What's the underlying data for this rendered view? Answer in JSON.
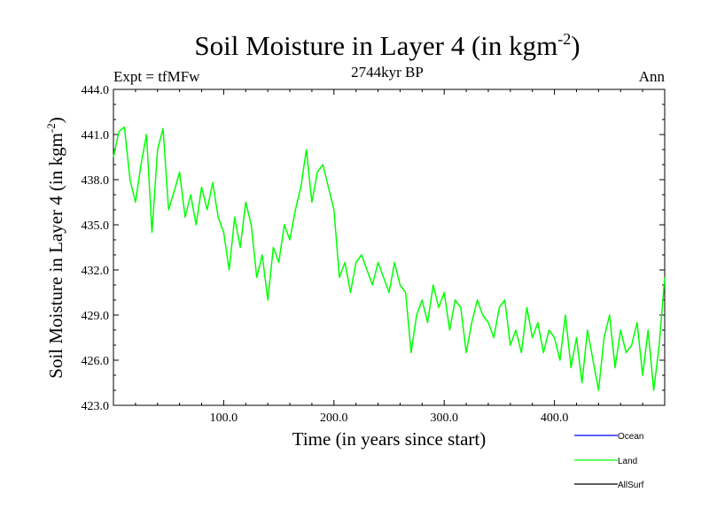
{
  "chart_data": {
    "type": "line",
    "title_main": "Soil Moisture in Layer 4 (in kgm",
    "title_sup": "-2",
    "title_close": ")",
    "subtitle": "2744kyr BP",
    "left_label": "Expt = tfMFw",
    "right_label": "Ann",
    "xlabel": "Time (in years since start)",
    "ylabel_main": "Soil Moisture in Layer 4 (in kgm",
    "ylabel_sup": "-2",
    "ylabel_close": ")",
    "xlim": [
      0,
      500
    ],
    "ylim": [
      423,
      444
    ],
    "x_ticks": [
      100,
      200,
      300,
      400
    ],
    "x_tick_labels": [
      "100.0",
      "200.0",
      "300.0",
      "400.0"
    ],
    "y_ticks": [
      423,
      426,
      429,
      432,
      435,
      438,
      441,
      444
    ],
    "y_tick_labels": [
      "423.0",
      "426.0",
      "429.0",
      "432.0",
      "435.0",
      "438.0",
      "441.0",
      "444.0"
    ],
    "legend": [
      {
        "name": "Ocean",
        "color": "#0000ff"
      },
      {
        "name": "Land",
        "color": "#00ff00"
      },
      {
        "name": "AllSurf",
        "color": "#000000"
      }
    ],
    "series": [
      {
        "name": "Land",
        "color": "#00ff00",
        "x": [
          0,
          5,
          10,
          15,
          20,
          25,
          30,
          35,
          40,
          45,
          50,
          55,
          60,
          65,
          70,
          75,
          80,
          85,
          90,
          95,
          100,
          105,
          110,
          115,
          120,
          125,
          130,
          135,
          140,
          145,
          150,
          155,
          160,
          165,
          170,
          175,
          180,
          185,
          190,
          195,
          200,
          205,
          210,
          215,
          220,
          225,
          230,
          235,
          240,
          245,
          250,
          255,
          260,
          265,
          270,
          275,
          280,
          285,
          290,
          295,
          300,
          305,
          310,
          315,
          320,
          325,
          330,
          335,
          340,
          345,
          350,
          355,
          360,
          365,
          370,
          375,
          380,
          385,
          390,
          395,
          400,
          405,
          410,
          415,
          420,
          425,
          430,
          435,
          440,
          445,
          450,
          455,
          460,
          465,
          470,
          475,
          480,
          485,
          490,
          495,
          500
        ],
        "values": [
          439.5,
          441.2,
          441.5,
          438.0,
          436.5,
          439.0,
          441.0,
          434.5,
          440.0,
          441.4,
          436.0,
          437.2,
          438.5,
          435.5,
          437.0,
          435.0,
          437.5,
          436.0,
          437.8,
          435.5,
          434.5,
          432.0,
          435.5,
          433.5,
          436.5,
          435.0,
          431.5,
          433.0,
          430.0,
          433.5,
          432.5,
          435.0,
          434.0,
          436.0,
          437.5,
          440.0,
          436.5,
          438.5,
          439.0,
          437.5,
          436.0,
          431.5,
          432.5,
          430.5,
          432.5,
          433.0,
          432.0,
          431.0,
          432.5,
          431.5,
          430.5,
          432.5,
          431.0,
          430.5,
          426.5,
          429.0,
          430.0,
          428.5,
          431.0,
          429.5,
          430.5,
          428.0,
          430.0,
          429.5,
          426.5,
          428.5,
          430.0,
          429.0,
          428.5,
          427.5,
          429.5,
          430.0,
          427.0,
          428.0,
          426.5,
          429.5,
          427.5,
          428.5,
          426.5,
          428.0,
          427.5,
          426.0,
          429.0,
          425.5,
          427.5,
          424.5,
          428.0,
          426.0,
          424.0,
          427.5,
          429.0,
          425.5,
          428.0,
          426.5,
          427.0,
          428.5,
          425.0,
          428.0,
          424.0,
          427.0,
          431.5
        ]
      }
    ]
  }
}
